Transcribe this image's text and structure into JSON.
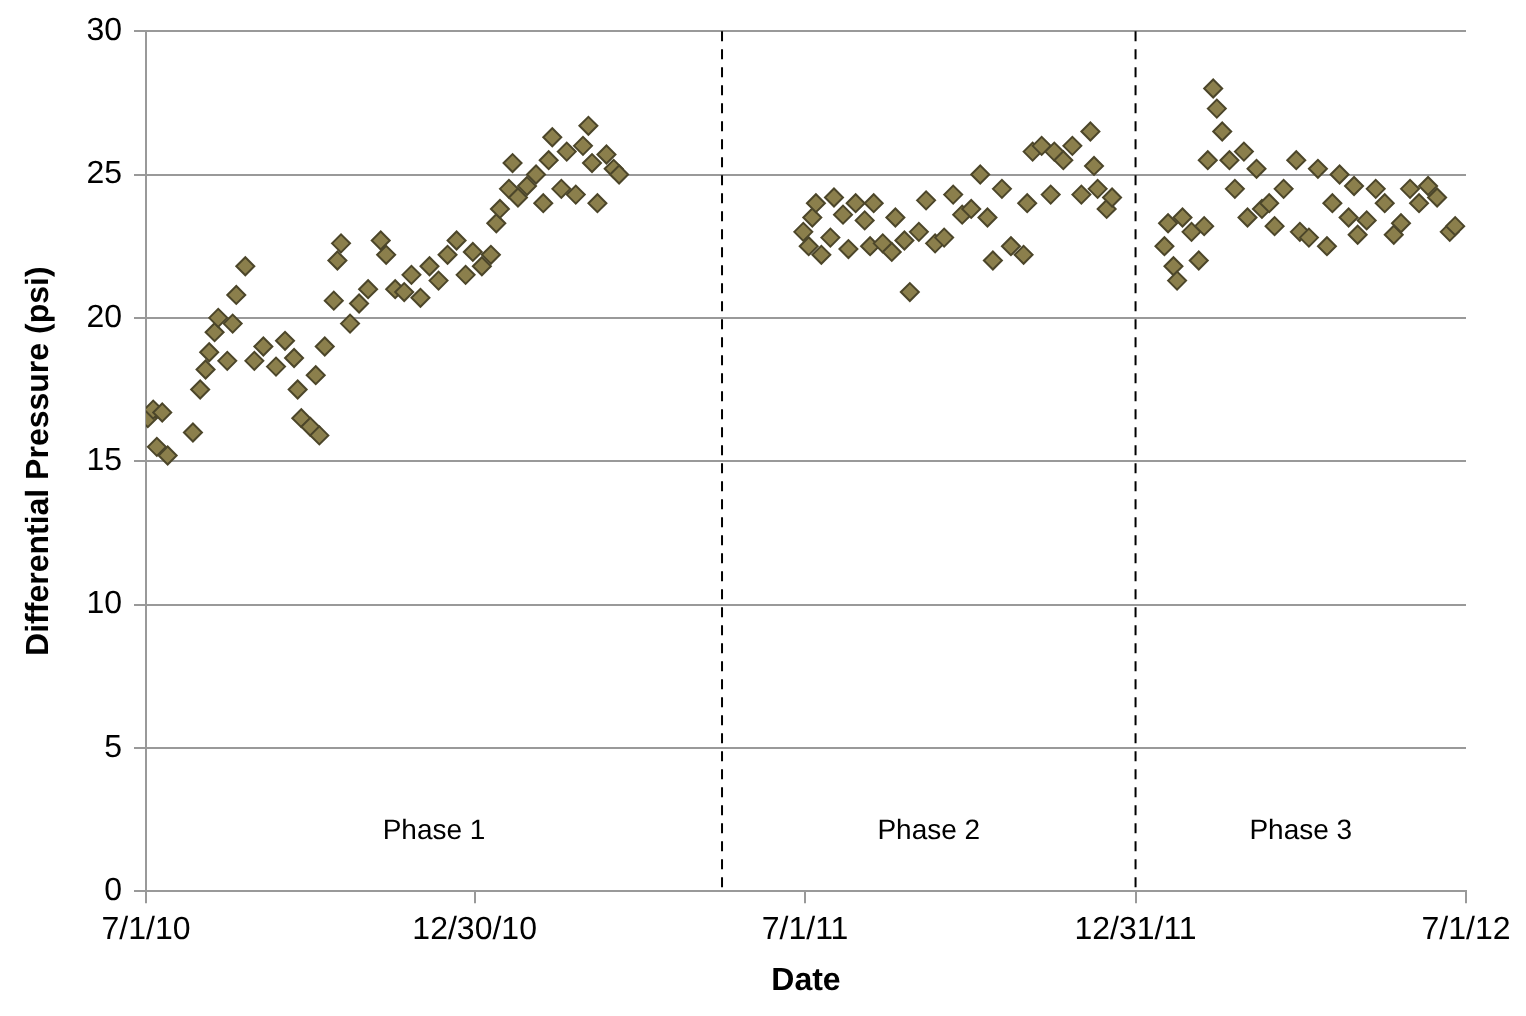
{
  "chart_data": {
    "type": "scatter",
    "xlabel": "Date",
    "ylabel": "Differential Pressure (psi)",
    "marker": "diamond",
    "grid": "y",
    "legend": false,
    "xlim": [
      "2010-07-01",
      "2012-07-01"
    ],
    "xticks": [
      {
        "value": "2010-07-01",
        "label": "7/1/10"
      },
      {
        "value": "2010-12-30",
        "label": "12/30/10"
      },
      {
        "value": "2011-07-01",
        "label": "7/1/11"
      },
      {
        "value": "2011-12-31",
        "label": "12/31/11"
      },
      {
        "value": "2012-07-01",
        "label": "7/1/12"
      }
    ],
    "ylim": [
      0,
      30
    ],
    "yticks": [
      0,
      5,
      10,
      15,
      20,
      25,
      30
    ],
    "ref_lines": [
      {
        "axis": "x",
        "value": "2011-05-16",
        "label": null,
        "color": "#000000",
        "line_style": "dashed"
      },
      {
        "axis": "x",
        "value": "2011-12-31",
        "label": null,
        "color": "#000000",
        "line_style": "dashed"
      }
    ],
    "annotations": [
      "Phase 1",
      "Phase 2",
      "Phase 3"
    ],
    "series": [
      {
        "color": "#8b7f4c",
        "x": [
          "2010-07-02",
          "2010-07-05",
          "2010-07-07",
          "2010-07-10",
          "2010-07-13",
          "2010-07-27",
          "2010-07-31",
          "2010-08-03",
          "2010-08-05",
          "2010-08-08",
          "2010-08-10",
          "2010-08-15",
          "2010-08-18",
          "2010-08-20",
          "2010-08-25",
          "2010-08-30",
          "2010-09-04",
          "2010-09-11",
          "2010-09-16",
          "2010-09-21",
          "2010-09-23",
          "2010-09-25",
          "2010-09-30",
          "2010-10-03",
          "2010-10-05",
          "2010-10-08",
          "2010-10-13",
          "2010-10-15",
          "2010-10-17",
          "2010-10-22",
          "2010-10-27",
          "2010-11-01",
          "2010-11-08",
          "2010-11-11",
          "2010-11-16",
          "2010-11-21",
          "2010-11-25",
          "2010-11-30",
          "2010-12-05",
          "2010-12-10",
          "2010-12-15",
          "2010-12-20",
          "2010-12-25",
          "2010-12-29",
          "2011-01-03",
          "2011-01-08",
          "2011-01-11",
          "2011-01-13",
          "2011-01-18",
          "2011-01-20",
          "2011-01-23",
          "2011-01-28",
          "2011-02-02",
          "2011-02-06",
          "2011-02-09",
          "2011-02-11",
          "2011-02-16",
          "2011-02-19",
          "2011-02-24",
          "2011-02-28",
          "2011-03-03",
          "2011-03-05",
          "2011-03-08",
          "2011-03-13",
          "2011-03-17",
          "2011-03-20",
          "2011-06-30",
          "2011-07-03",
          "2011-07-05",
          "2011-07-07",
          "2011-07-10",
          "2011-07-15",
          "2011-07-17",
          "2011-07-22",
          "2011-07-25",
          "2011-07-29",
          "2011-08-03",
          "2011-08-06",
          "2011-08-08",
          "2011-08-13",
          "2011-08-18",
          "2011-08-20",
          "2011-08-25",
          "2011-08-28",
          "2011-09-02",
          "2011-09-06",
          "2011-09-11",
          "2011-09-16",
          "2011-09-21",
          "2011-09-26",
          "2011-10-01",
          "2011-10-06",
          "2011-10-10",
          "2011-10-13",
          "2011-10-18",
          "2011-10-23",
          "2011-10-30",
          "2011-11-01",
          "2011-11-04",
          "2011-11-09",
          "2011-11-14",
          "2011-11-16",
          "2011-11-21",
          "2011-11-26",
          "2011-12-01",
          "2011-12-06",
          "2011-12-08",
          "2011-12-10",
          "2011-12-15",
          "2011-12-18",
          "2012-01-16",
          "2012-01-18",
          "2012-01-21",
          "2012-01-23",
          "2012-01-26",
          "2012-01-31",
          "2012-02-04",
          "2012-02-07",
          "2012-02-09",
          "2012-02-12",
          "2012-02-14",
          "2012-02-17",
          "2012-02-21",
          "2012-02-24",
          "2012-02-29",
          "2012-03-02",
          "2012-03-07",
          "2012-03-10",
          "2012-03-14",
          "2012-03-17",
          "2012-03-22",
          "2012-03-29",
          "2012-03-31",
          "2012-04-05",
          "2012-04-10",
          "2012-04-15",
          "2012-04-18",
          "2012-04-22",
          "2012-04-27",
          "2012-04-30",
          "2012-05-02",
          "2012-05-07",
          "2012-05-12",
          "2012-05-17",
          "2012-05-22",
          "2012-05-26",
          "2012-05-31",
          "2012-06-05",
          "2012-06-10",
          "2012-06-15",
          "2012-06-22",
          "2012-06-25"
        ],
        "values": [
          16.5,
          16.8,
          15.5,
          16.7,
          15.2,
          16.0,
          17.5,
          18.2,
          18.8,
          19.5,
          20.0,
          18.5,
          19.8,
          20.8,
          21.8,
          18.5,
          19.0,
          18.3,
          19.2,
          18.6,
          17.5,
          16.5,
          16.2,
          18.0,
          15.9,
          19.0,
          20.6,
          22.0,
          22.6,
          19.8,
          20.5,
          21.0,
          22.7,
          22.2,
          21.0,
          20.9,
          21.5,
          20.7,
          21.8,
          21.3,
          22.2,
          22.7,
          21.5,
          22.3,
          21.8,
          22.2,
          23.3,
          23.8,
          24.5,
          25.4,
          24.2,
          24.6,
          25.0,
          24.0,
          25.5,
          26.3,
          24.5,
          25.8,
          24.3,
          26.0,
          26.7,
          25.4,
          24.0,
          25.7,
          25.2,
          25.0,
          23.0,
          22.5,
          23.5,
          24.0,
          22.2,
          22.8,
          24.2,
          23.6,
          22.4,
          24.0,
          23.4,
          22.5,
          24.0,
          22.6,
          22.3,
          23.5,
          22.7,
          20.9,
          23.0,
          24.1,
          22.6,
          22.8,
          24.3,
          23.6,
          23.8,
          25.0,
          23.5,
          22.0,
          24.5,
          22.5,
          22.2,
          24.0,
          25.8,
          26.0,
          24.3,
          25.8,
          25.5,
          26.0,
          24.3,
          26.5,
          25.3,
          24.5,
          23.8,
          24.2,
          22.5,
          23.3,
          21.8,
          21.3,
          23.5,
          23.0,
          22.0,
          23.2,
          25.5,
          28.0,
          27.3,
          26.5,
          25.5,
          24.5,
          25.8,
          23.5,
          25.2,
          23.8,
          24.0,
          23.2,
          24.5,
          25.5,
          23.0,
          22.8,
          25.2,
          22.5,
          24.0,
          25.0,
          23.5,
          24.6,
          22.9,
          23.4,
          24.5,
          24.0,
          22.9,
          23.3,
          24.5,
          24.0,
          24.6,
          24.2,
          23.0,
          23.2
        ]
      }
    ]
  }
}
